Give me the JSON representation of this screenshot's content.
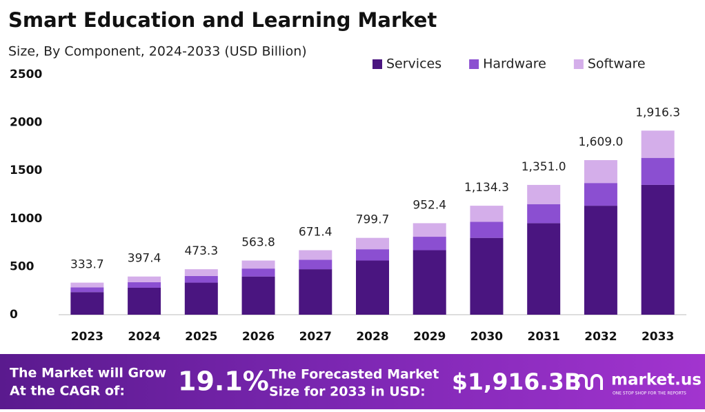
{
  "chart_data": {
    "type": "stacked-bar",
    "title": "Smart Education and Learning Market",
    "subtitle": "Size, By Component, 2024-2033 (USD Billion)",
    "categories": [
      "2023",
      "2024",
      "2025",
      "2026",
      "2027",
      "2028",
      "2029",
      "2030",
      "2031",
      "2032",
      "2033"
    ],
    "series": [
      {
        "name": "Services",
        "color": "#4a1580",
        "values": [
          235.3,
          280.2,
          333.7,
          397.5,
          473.4,
          563.8,
          671.5,
          799.7,
          952.5,
          1134.3,
          1351.0
        ]
      },
      {
        "name": "Hardware",
        "color": "#8b4fd1",
        "values": [
          49.0,
          58.4,
          69.6,
          82.9,
          98.7,
          117.6,
          140.0,
          166.7,
          198.6,
          236.5,
          281.7
        ]
      },
      {
        "name": "Software",
        "color": "#d4aeea",
        "values": [
          49.4,
          58.8,
          70.0,
          83.4,
          99.3,
          118.3,
          140.9,
          167.9,
          199.9,
          238.2,
          283.6
        ]
      }
    ],
    "totals": {
      "values": [
        333.7,
        397.4,
        473.3,
        563.8,
        671.4,
        799.7,
        952.4,
        1134.3,
        1351.0,
        1609.0,
        1916.3
      ],
      "value_labels": [
        "333.7",
        "397.4",
        "473.3",
        "563.8",
        "671.4",
        "799.7",
        "952.4",
        "1,134.3",
        "1,351.0",
        "1,609.0",
        "1,916.3"
      ]
    },
    "ylim": [
      0,
      2500
    ],
    "yticks": [
      0,
      500,
      1000,
      1500,
      2000,
      2500
    ],
    "grid": false,
    "legend": "top-right"
  },
  "footer": {
    "cagr_text": [
      "The Market will Grow",
      "At the CAGR of:"
    ],
    "cagr_value": "19.1%",
    "forecast_text": [
      "The Forecasted Market",
      "Size for 2033 in USD:"
    ],
    "forecast_value": "$1,916.3B",
    "brand": "market.us",
    "tagline": "ONE STOP SHOP FOR THE REPORTS"
  }
}
